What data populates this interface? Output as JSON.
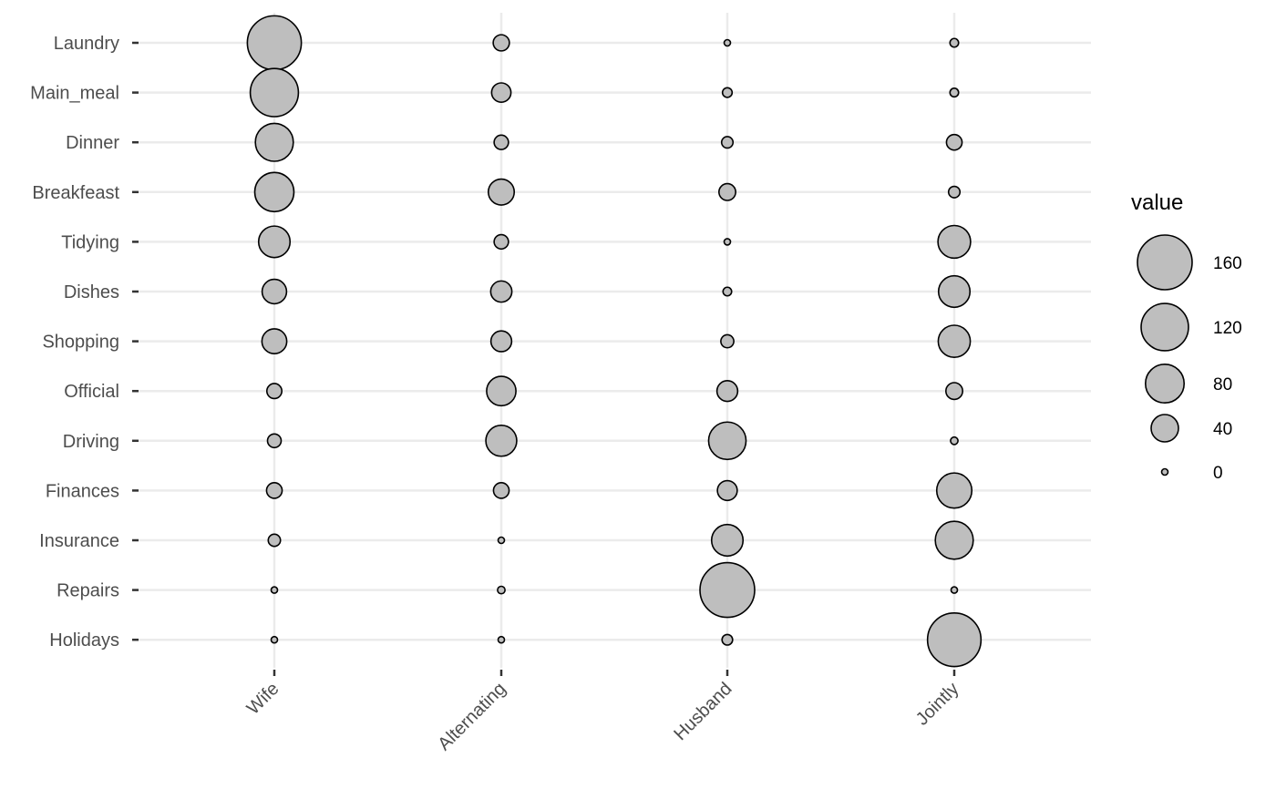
{
  "chart_data": {
    "type": "scatter",
    "title": "",
    "xlabel": "",
    "ylabel": "",
    "x_categories": [
      "Wife",
      "Alternating",
      "Husband",
      "Jointly"
    ],
    "y_categories": [
      "Laundry",
      "Main_meal",
      "Dinner",
      "Breakfeast",
      "Tidying",
      "Dishes",
      "Shopping",
      "Official",
      "Driving",
      "Finances",
      "Insurance",
      "Repairs",
      "Holidays"
    ],
    "series": [
      {
        "values": [
          156,
          124,
          77,
          82,
          53,
          32,
          33,
          12,
          10,
          13,
          8,
          0,
          0
        ]
      },
      {
        "values": [
          14,
          20,
          11,
          36,
          11,
          24,
          23,
          46,
          51,
          13,
          1,
          3,
          1
        ]
      },
      {
        "values": [
          2,
          5,
          7,
          15,
          1,
          4,
          9,
          23,
          75,
          21,
          53,
          160,
          6
        ]
      },
      {
        "values": [
          4,
          4,
          13,
          7,
          57,
          53,
          55,
          15,
          3,
          66,
          77,
          2,
          153
        ]
      }
    ],
    "grid": true,
    "point_fill": "#bebebe",
    "point_stroke": "#000000",
    "grid_color": "#ebebeb",
    "legend": {
      "title": "value",
      "position": "right",
      "breaks": [
        160,
        120,
        80,
        40,
        0
      ]
    }
  }
}
